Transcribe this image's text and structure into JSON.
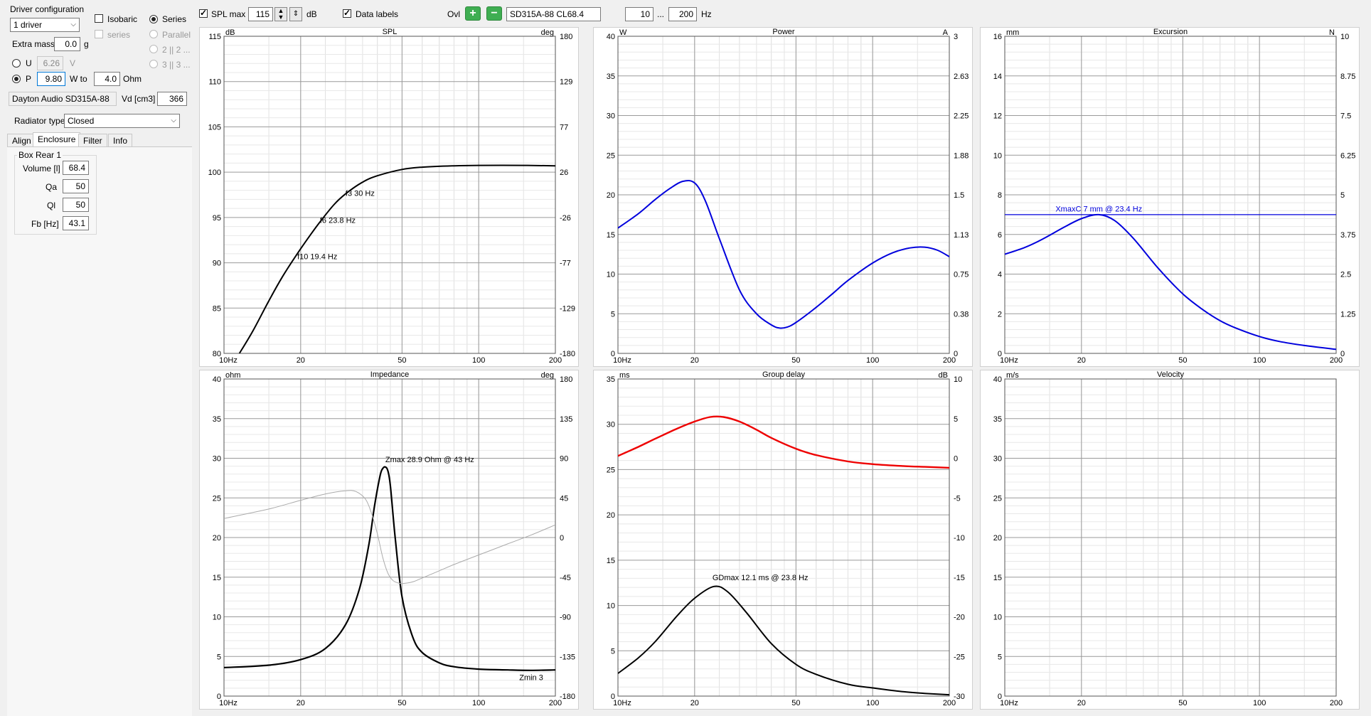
{
  "left": {
    "driver_config_title": "Driver configuration",
    "driver_count": "1 driver",
    "isobaric_label": "Isobaric",
    "series_sub_label": "series",
    "series_label": "Series",
    "parallel_label": "Parallel",
    "two_two_label": "2 || 2 ...",
    "three_three_label": "3 || 3 ...",
    "extra_mass_label": "Extra mass",
    "extra_mass_value": "0.0",
    "extra_mass_unit": "g",
    "u_label": "U",
    "u_value": "6.26",
    "u_unit": "V",
    "p_label": "P",
    "p_value": "9.80",
    "p_unit": "W to",
    "ohm_value": "4.0",
    "ohm_unit": "Ohm",
    "driver_name": "Dayton Audio SD315A-88",
    "vd_label": "Vd [cm3]",
    "vd_value": "366",
    "radiator_label": "Radiator type",
    "radiator_value": "Closed",
    "tabs": [
      "Align",
      "Enclosure",
      "Filter",
      "Info"
    ],
    "box_title": "Box Rear 1",
    "volume_label": "Volume [l]",
    "volume_value": "68.4",
    "qa_label": "Qa",
    "qa_value": "50",
    "ql_label": "Ql",
    "ql_value": "50",
    "fb_label": "Fb [Hz]",
    "fb_value": "43.1"
  },
  "toolbar": {
    "spl_max_label": "SPL max",
    "spl_max_value": "115",
    "db_label": "dB",
    "data_labels_label": "Data labels",
    "ovl_label": "Ovl",
    "overlay_name": "SD315A-88 CL68.4",
    "freq_from": "10",
    "freq_sep": "...",
    "freq_to": "200",
    "hz_label": "Hz"
  },
  "chart_data": [
    {
      "id": "spl",
      "type": "line",
      "title": "SPL",
      "left_unit": "dB",
      "right_unit": "deg",
      "x_ticks": [
        "10Hz",
        "20",
        "50",
        "100",
        "200"
      ],
      "ylim": [
        80,
        115
      ],
      "y_ticks": [
        "115",
        "110",
        "105",
        "100",
        "95",
        "90",
        "85",
        "80"
      ],
      "y2_ticks": [
        "180",
        "129",
        "77",
        "26",
        "-26",
        "-77",
        "-129",
        "-180"
      ],
      "series": [
        {
          "color": "#000000",
          "x": [
            11.5,
            13,
            15,
            17,
            19.4,
            22,
            23.8,
            27,
            30,
            35,
            40,
            50,
            60,
            80,
            100,
            150,
            200
          ],
          "y": [
            80,
            82.5,
            85.8,
            88.5,
            91.0,
            93.2,
            94.5,
            96.4,
            97.6,
            98.9,
            99.6,
            100.3,
            100.55,
            100.7,
            100.75,
            100.75,
            100.7
          ]
        }
      ],
      "annotations": [
        {
          "text": "f3 30 Hz",
          "x": 30,
          "y": 97.4
        },
        {
          "text": "f6 23.8 Hz",
          "x": 23.8,
          "y": 94.4
        },
        {
          "text": "f10 19.4 Hz",
          "x": 19.4,
          "y": 90.4
        }
      ]
    },
    {
      "id": "power",
      "type": "line",
      "title": "Power",
      "left_unit": "W",
      "right_unit": "A",
      "x_ticks": [
        "10Hz",
        "20",
        "50",
        "100",
        "200"
      ],
      "ylim": [
        0,
        40
      ],
      "y_ticks": [
        "40",
        "35",
        "30",
        "25",
        "20",
        "15",
        "10",
        "5",
        "0"
      ],
      "y2_ticks": [
        "3",
        "2.63",
        "2.25",
        "1.88",
        "1.5",
        "1.13",
        "0.75",
        "0.38",
        "0"
      ],
      "series": [
        {
          "color": "#0000dd",
          "x": [
            10,
            12,
            14,
            16,
            18,
            20,
            22,
            25,
            30,
            35,
            40,
            43,
            46,
            50,
            60,
            70,
            80,
            100,
            120,
            140,
            160,
            180,
            200
          ],
          "y": [
            15.8,
            17.6,
            19.4,
            20.8,
            21.7,
            21.5,
            19.3,
            14.5,
            8.0,
            5.0,
            3.6,
            3.2,
            3.3,
            3.9,
            5.8,
            7.6,
            9.2,
            11.4,
            12.7,
            13.3,
            13.4,
            13.0,
            12.2
          ]
        }
      ],
      "annotations": []
    },
    {
      "id": "excursion",
      "type": "line",
      "title": "Excursion",
      "left_unit": "mm",
      "right_unit": "N",
      "x_ticks": [
        "10Hz",
        "20",
        "50",
        "100",
        "200"
      ],
      "ylim": [
        0,
        16
      ],
      "y_ticks": [
        "16",
        "14",
        "12",
        "10",
        "8",
        "6",
        "4",
        "2",
        "0"
      ],
      "y2_ticks": [
        "10",
        "8.75",
        "7.5",
        "6.25",
        "5",
        "3.75",
        "2.5",
        "1.25",
        "0"
      ],
      "series": [
        {
          "color": "#0000dd",
          "x": [
            10,
            12,
            14,
            17,
            20,
            23.4,
            27,
            32,
            40,
            50,
            60,
            70,
            80,
            100,
            120,
            150,
            200
          ],
          "y": [
            5.0,
            5.35,
            5.75,
            6.35,
            6.8,
            7.0,
            6.7,
            5.8,
            4.3,
            3.0,
            2.2,
            1.65,
            1.3,
            0.85,
            0.6,
            0.4,
            0.2
          ]
        }
      ],
      "hline": {
        "y": 7,
        "color": "#0000dd"
      },
      "annotations": [
        {
          "text": "XmaxC 7 mm  @ 23.4 Hz",
          "x": 23.4,
          "y": 7.15,
          "color": "#0000dd"
        }
      ]
    },
    {
      "id": "impedance",
      "type": "line",
      "title": "Impedance",
      "left_unit": "ohm",
      "right_unit": "deg",
      "x_ticks": [
        "10Hz",
        "20",
        "50",
        "100",
        "200"
      ],
      "ylim": [
        0,
        40
      ],
      "y_ticks": [
        "40",
        "35",
        "30",
        "25",
        "20",
        "15",
        "10",
        "5",
        "0"
      ],
      "y2_ticks": [
        "180",
        "135",
        "90",
        "45",
        "0",
        "-45",
        "-90",
        "-135",
        "-180"
      ],
      "series": [
        {
          "color": "#000000",
          "width": 2.2,
          "x": [
            10,
            15,
            20,
            25,
            30,
            34,
            37,
            39,
            41,
            42,
            43,
            44,
            45,
            47,
            50,
            55,
            60,
            70,
            80,
            100,
            130,
            160,
            200
          ],
          "y": [
            3.6,
            3.9,
            4.6,
            6.0,
            9.0,
            13.5,
            19.0,
            24.0,
            27.8,
            28.7,
            28.9,
            28.4,
            26.5,
            20.0,
            12.5,
            7.5,
            5.5,
            4.2,
            3.7,
            3.4,
            3.3,
            3.25,
            3.3
          ]
        },
        {
          "color": "#aaaaaa",
          "width": 1,
          "x": [
            10,
            15,
            20,
            25,
            30,
            33,
            36,
            38,
            40,
            42,
            44,
            46,
            48,
            50,
            55,
            60,
            70,
            80,
            100,
            130,
            160,
            200
          ],
          "y": [
            22.4,
            23.6,
            24.7,
            25.5,
            25.9,
            25.8,
            24.8,
            23.0,
            20.5,
            17.5,
            15.5,
            14.6,
            14.3,
            14.2,
            14.4,
            14.9,
            15.8,
            16.6,
            17.8,
            19.2,
            20.3,
            21.6
          ]
        }
      ],
      "annotations": [
        {
          "text": "Zmax 28.9 Ohm @ 43 Hz",
          "x": 43,
          "y": 29.5
        },
        {
          "text": "Zmin 3",
          "x": 175,
          "y": 2.0
        }
      ]
    },
    {
      "id": "groupdelay",
      "type": "line",
      "title": "Group delay",
      "left_unit": "ms",
      "right_unit": "dB",
      "x_ticks": [
        "10Hz",
        "20",
        "50",
        "100",
        "200"
      ],
      "ylim": [
        0,
        35
      ],
      "y_ticks": [
        "35",
        "30",
        "25",
        "20",
        "15",
        "10",
        "5",
        "0"
      ],
      "y2_ticks": [
        "10",
        "5",
        "0",
        "-5",
        "-10",
        "-15",
        "-20",
        "-25",
        "-30"
      ],
      "series": [
        {
          "color": "#000000",
          "x": [
            10,
            12,
            14,
            17,
            20,
            23.8,
            27,
            32,
            40,
            50,
            60,
            80,
            100,
            130,
            160,
            200
          ],
          "y": [
            2.5,
            4.2,
            6.0,
            8.8,
            10.8,
            12.1,
            11.5,
            9.2,
            5.8,
            3.5,
            2.4,
            1.3,
            0.9,
            0.5,
            0.3,
            0.15
          ]
        },
        {
          "color": "#ee0000",
          "width": 2.4,
          "x": [
            10,
            12,
            14,
            17,
            20,
            23,
            26,
            30,
            35,
            40,
            50,
            60,
            80,
            100,
            130,
            160,
            200
          ],
          "y": [
            26.5,
            27.5,
            28.4,
            29.5,
            30.3,
            30.8,
            30.8,
            30.3,
            29.4,
            28.5,
            27.3,
            26.6,
            25.9,
            25.6,
            25.4,
            25.3,
            25.2
          ]
        }
      ],
      "annotations": [
        {
          "text": "GDmax 12.1 ms  @ 23.8 Hz",
          "x": 23.8,
          "y": 12.8
        }
      ]
    },
    {
      "id": "velocity",
      "type": "line",
      "title": "Velocity",
      "left_unit": "m/s",
      "right_unit": "",
      "x_ticks": [
        "10Hz",
        "20",
        "50",
        "100",
        "200"
      ],
      "ylim": [
        0,
        40
      ],
      "y_ticks": [
        "40",
        "35",
        "30",
        "25",
        "20",
        "15",
        "10",
        "5",
        "0"
      ],
      "y2_ticks": [],
      "series": [],
      "annotations": []
    }
  ]
}
